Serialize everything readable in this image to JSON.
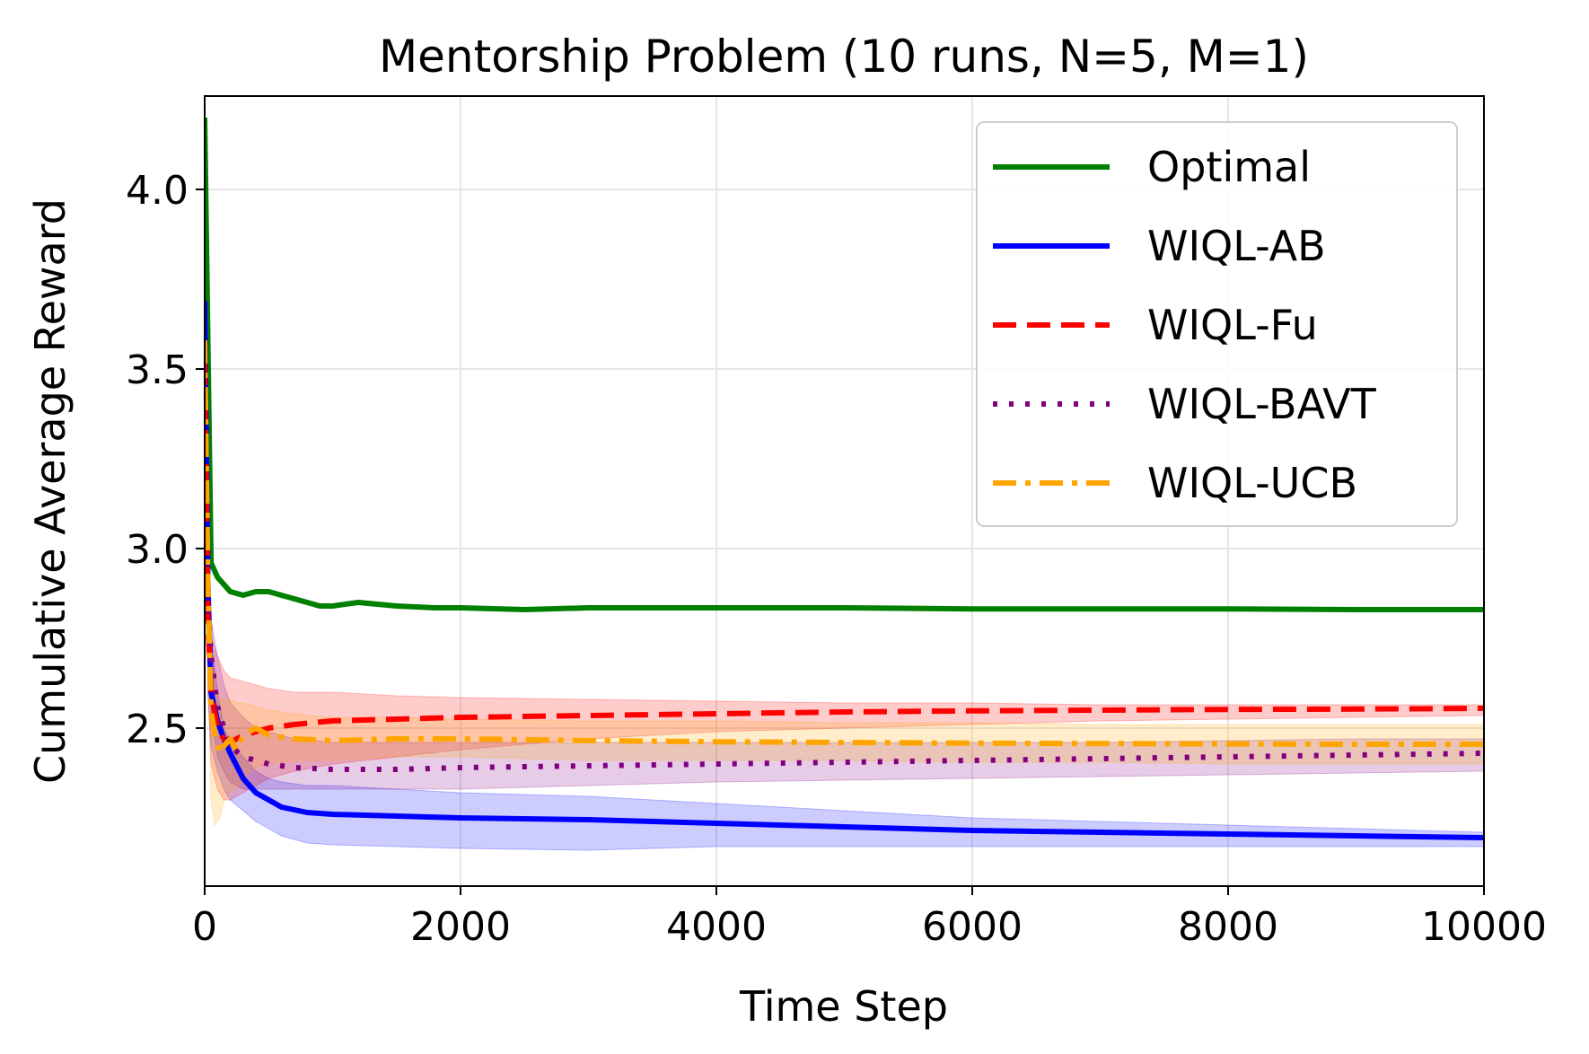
{
  "chart_data": {
    "type": "line",
    "title": "Mentorship Problem (10 runs, N=5, M=1)",
    "xlabel": "Time Step",
    "ylabel": "Cumulative Average Reward",
    "xlim": [
      0,
      10000
    ],
    "ylim": [
      2.06,
      4.26
    ],
    "xticks": [
      0,
      2000,
      4000,
      6000,
      8000,
      10000
    ],
    "xtick_labels": [
      "0",
      "2000",
      "4000",
      "6000",
      "8000",
      "10000"
    ],
    "yticks": [
      2.5,
      3.0,
      3.5,
      4.0
    ],
    "ytick_labels": [
      "2.5",
      "3.0",
      "3.5",
      "4.0"
    ],
    "grid": true,
    "legend_position": "top-right",
    "series": [
      {
        "name": "Optimal",
        "color": "#008000",
        "style": "solid",
        "x": [
          0,
          50,
          100,
          200,
          300,
          400,
          500,
          700,
          900,
          1000,
          1200,
          1500,
          1800,
          2000,
          2500,
          3000,
          4000,
          5000,
          6000,
          7000,
          8000,
          9000,
          10000
        ],
        "y": [
          4.2,
          2.96,
          2.92,
          2.88,
          2.87,
          2.88,
          2.88,
          2.86,
          2.84,
          2.84,
          2.85,
          2.84,
          2.835,
          2.835,
          2.83,
          2.835,
          2.835,
          2.835,
          2.832,
          2.832,
          2.832,
          2.83,
          2.83
        ]
      },
      {
        "name": "WIQL-AB",
        "color": "#0000ff",
        "style": "solid",
        "x": [
          0,
          25,
          50,
          100,
          150,
          200,
          300,
          400,
          500,
          600,
          800,
          1000,
          1500,
          2000,
          3000,
          4000,
          5000,
          6000,
          7000,
          8000,
          9000,
          10000
        ],
        "y": [
          3.69,
          2.9,
          2.6,
          2.52,
          2.47,
          2.43,
          2.36,
          2.32,
          2.3,
          2.28,
          2.265,
          2.26,
          2.255,
          2.25,
          2.245,
          2.235,
          2.225,
          2.215,
          2.21,
          2.205,
          2.2,
          2.195
        ],
        "band_upper": [
          3.69,
          3.0,
          2.75,
          2.6,
          2.5,
          2.46,
          2.42,
          2.38,
          2.36,
          2.35,
          2.34,
          2.34,
          2.33,
          2.32,
          2.31,
          2.29,
          2.27,
          2.25,
          2.24,
          2.23,
          2.22,
          2.21
        ],
        "band_lower": [
          3.69,
          2.6,
          2.45,
          2.38,
          2.33,
          2.3,
          2.27,
          2.24,
          2.22,
          2.2,
          2.18,
          2.175,
          2.17,
          2.165,
          2.16,
          2.17,
          2.17,
          2.17,
          2.17,
          2.17,
          2.17,
          2.17
        ]
      },
      {
        "name": "WIQL-Fu",
        "color": "#ff0000",
        "style": "dashed",
        "x": [
          0,
          25,
          50,
          100,
          150,
          200,
          300,
          400,
          500,
          700,
          1000,
          1500,
          2000,
          3000,
          4000,
          5000,
          6000,
          7000,
          8000,
          9000,
          10000
        ],
        "y": [
          3.52,
          2.8,
          2.6,
          2.5,
          2.47,
          2.46,
          2.48,
          2.49,
          2.5,
          2.51,
          2.52,
          2.525,
          2.53,
          2.535,
          2.54,
          2.545,
          2.548,
          2.55,
          2.552,
          2.553,
          2.555
        ],
        "band_upper": [
          3.52,
          2.95,
          2.75,
          2.7,
          2.66,
          2.64,
          2.63,
          2.62,
          2.61,
          2.6,
          2.6,
          2.59,
          2.585,
          2.58,
          2.575,
          2.57,
          2.57,
          2.565,
          2.565,
          2.565,
          2.565
        ],
        "band_lower": [
          3.52,
          2.6,
          2.4,
          2.33,
          2.3,
          2.3,
          2.32,
          2.34,
          2.36,
          2.38,
          2.4,
          2.42,
          2.44,
          2.47,
          2.49,
          2.5,
          2.51,
          2.52,
          2.525,
          2.53,
          2.535
        ]
      },
      {
        "name": "WIQL-BAVT",
        "color": "#800080",
        "style": "dotted",
        "x": [
          0,
          25,
          50,
          100,
          150,
          200,
          300,
          400,
          500,
          700,
          1000,
          1500,
          2000,
          3000,
          4000,
          5000,
          6000,
          7000,
          8000,
          9000,
          10000
        ],
        "y": [
          3.1,
          2.85,
          2.7,
          2.56,
          2.5,
          2.45,
          2.42,
          2.41,
          2.4,
          2.39,
          2.385,
          2.385,
          2.39,
          2.395,
          2.4,
          2.405,
          2.41,
          2.415,
          2.42,
          2.425,
          2.43
        ],
        "band_upper": [
          3.1,
          2.95,
          2.8,
          2.7,
          2.62,
          2.57,
          2.53,
          2.5,
          2.49,
          2.47,
          2.46,
          2.46,
          2.46,
          2.46,
          2.46,
          2.46,
          2.46,
          2.46,
          2.465,
          2.47,
          2.47
        ],
        "band_lower": [
          3.1,
          2.7,
          2.55,
          2.42,
          2.38,
          2.35,
          2.33,
          2.33,
          2.33,
          2.33,
          2.33,
          2.33,
          2.33,
          2.34,
          2.35,
          2.355,
          2.36,
          2.365,
          2.37,
          2.375,
          2.38
        ]
      },
      {
        "name": "WIQL-UCB",
        "color": "#ffa500",
        "style": "dashdot",
        "x": [
          0,
          25,
          50,
          80,
          120,
          150,
          200,
          250,
          300,
          400,
          500,
          700,
          1000,
          1500,
          2000,
          3000,
          4000,
          5000,
          6000,
          7000,
          8000,
          9000,
          10000
        ],
        "y": [
          3.58,
          2.9,
          2.55,
          2.48,
          2.43,
          2.45,
          2.47,
          2.44,
          2.48,
          2.5,
          2.48,
          2.47,
          2.465,
          2.47,
          2.47,
          2.465,
          2.462,
          2.46,
          2.458,
          2.457,
          2.456,
          2.455,
          2.455
        ],
        "band_upper": [
          3.58,
          3.0,
          2.7,
          2.62,
          2.58,
          2.58,
          2.58,
          2.57,
          2.57,
          2.56,
          2.55,
          2.54,
          2.53,
          2.53,
          2.525,
          2.52,
          2.52,
          2.515,
          2.515,
          2.51,
          2.51,
          2.51,
          2.51
        ],
        "band_lower": [
          3.58,
          2.7,
          2.3,
          2.23,
          2.25,
          2.3,
          2.32,
          2.33,
          2.36,
          2.39,
          2.4,
          2.41,
          2.41,
          2.42,
          2.42,
          2.41,
          2.41,
          2.41,
          2.405,
          2.405,
          2.4,
          2.4,
          2.4
        ]
      }
    ]
  }
}
